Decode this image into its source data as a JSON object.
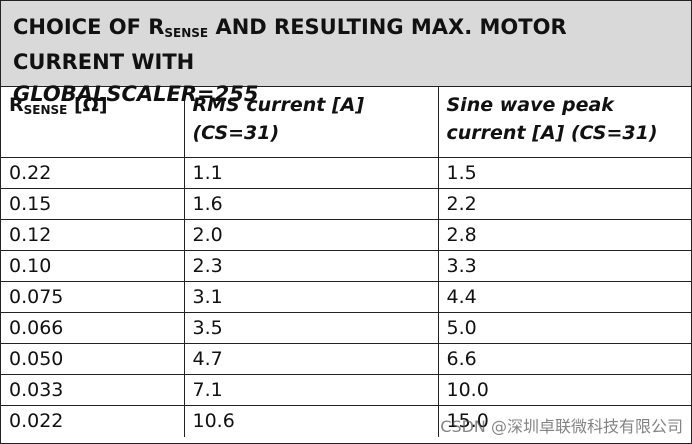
{
  "title": {
    "lead": "CHOICE OF R",
    "subscript": "SENSE",
    "rest": "AND RESULTING MAX. MOTOR CURRENT WITH",
    "emphasis": "GLOBALSCALER=255"
  },
  "table": {
    "header": [
      {
        "lead": "R",
        "subscript": "SENSE",
        "rest": "[Ω]"
      },
      {
        "line1": "RMS current [A]",
        "line2": "(CS=31)"
      },
      {
        "line1": "Sine wave peak",
        "line2": "current [A] (CS=31)"
      }
    ],
    "rows": [
      [
        "0.22",
        "1.1",
        "1.5"
      ],
      [
        "0.15",
        "1.6",
        "2.2"
      ],
      [
        "0.12",
        "2.0",
        "2.8"
      ],
      [
        "0.10",
        "2.3",
        "3.3"
      ],
      [
        "0.075",
        "3.1",
        "4.4"
      ],
      [
        "0.066",
        "3.5",
        "5.0"
      ],
      [
        "0.050",
        "4.7",
        "6.6"
      ],
      [
        "0.033",
        "7.1",
        "10.0"
      ],
      [
        "0.022",
        "10.6",
        "15.0"
      ]
    ]
  },
  "watermark": "CSDN @深圳卓联微科技有限公司"
}
